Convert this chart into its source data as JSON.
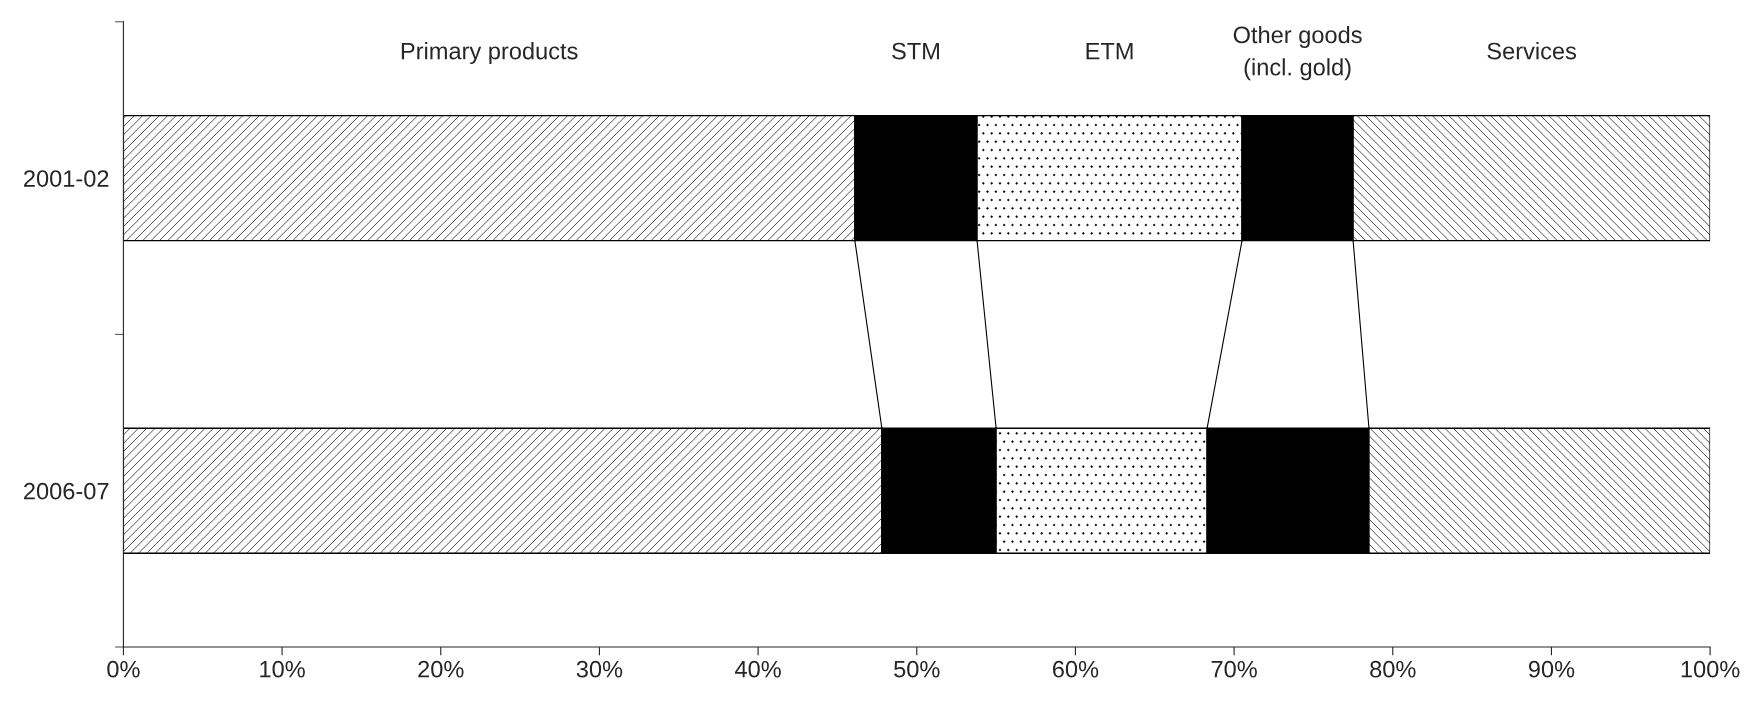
{
  "chart_data": {
    "type": "bar",
    "orientation": "horizontal",
    "stacked": true,
    "categories": [
      "2001-02",
      "2006-07"
    ],
    "series": [
      {
        "name": "Primary products",
        "color": "#000000",
        "values": [
          46.1,
          47.8
        ]
      },
      {
        "name": "STM",
        "color": "#000000",
        "values": [
          7.7,
          7.2
        ]
      },
      {
        "name": "ETM",
        "color": "#000000",
        "values": [
          16.7,
          13.3
        ]
      },
      {
        "name": "Other goods\n(incl. gold)",
        "color": "#000000",
        "values": [
          7.0,
          10.2
        ]
      },
      {
        "name": "Services",
        "color": "#000000",
        "values": [
          22.5,
          21.5
        ]
      }
    ],
    "xlim": [
      0,
      100
    ],
    "xticks": [
      {
        "value": 0,
        "label": "0%"
      },
      {
        "value": 10,
        "label": "10%"
      },
      {
        "value": 20,
        "label": "20%"
      },
      {
        "value": 30,
        "label": "30%"
      },
      {
        "value": 40,
        "label": "40%"
      },
      {
        "value": 50,
        "label": "50%"
      },
      {
        "value": 60,
        "label": "60%"
      },
      {
        "value": 70,
        "label": "70%"
      },
      {
        "value": 80,
        "label": "80%"
      },
      {
        "value": 90,
        "label": "90%"
      },
      {
        "value": 100,
        "label": "100%"
      }
    ],
    "grid": false,
    "legend": false
  }
}
